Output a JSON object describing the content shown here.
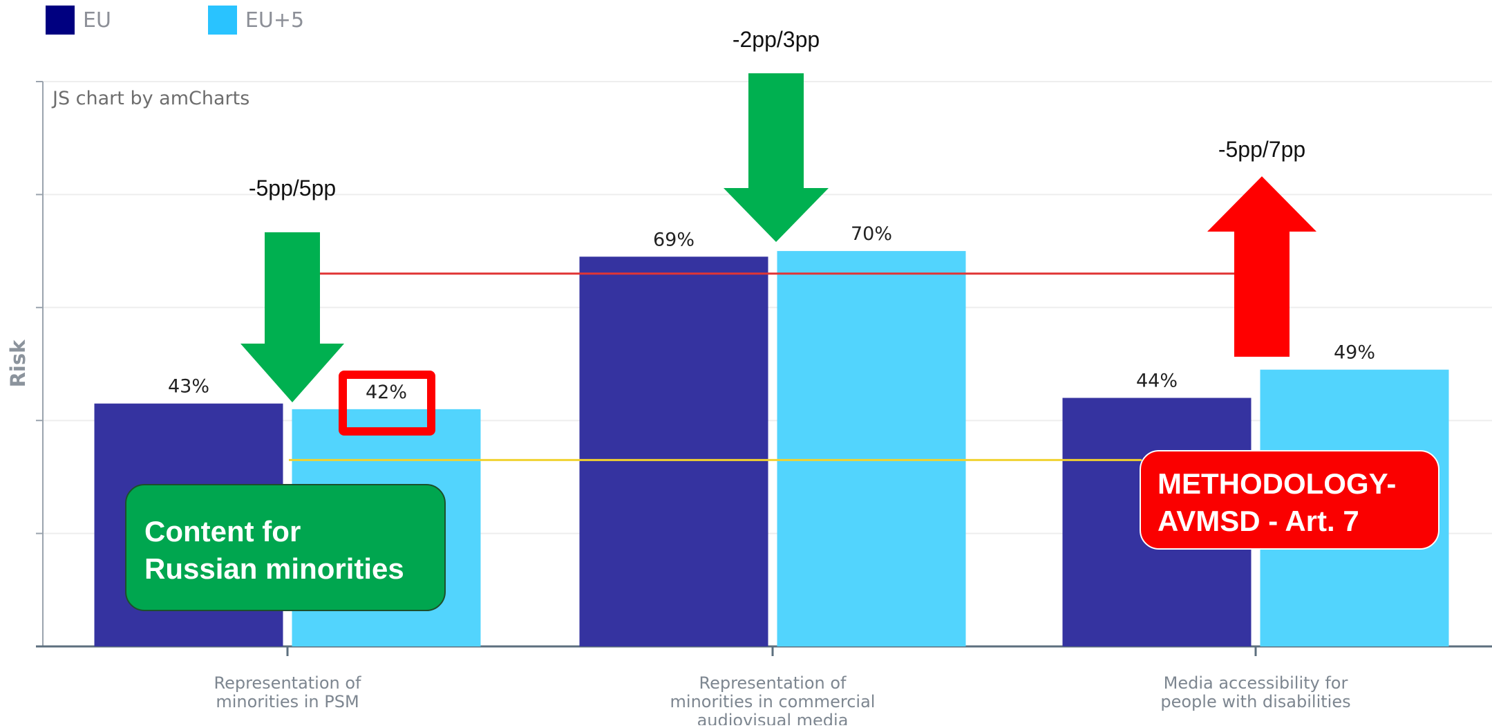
{
  "legend": [
    {
      "name": "EU",
      "color": "#000080"
    },
    {
      "name": "EU+5",
      "color": "#29c3ff"
    }
  ],
  "watermark": "JS chart by amCharts",
  "chart_data": {
    "type": "bar",
    "title": "",
    "xlabel": "",
    "ylabel": "Risk",
    "ylim": [
      0,
      100
    ],
    "grid": true,
    "legend_position": "top-left",
    "categories": [
      [
        "Representation of",
        "minorities in PSM"
      ],
      [
        "Representation of",
        "minorities in commercial",
        "audiovisual media"
      ],
      [
        "Media accessibility for",
        "people with disabilities"
      ]
    ],
    "series": [
      {
        "name": "EU",
        "color": "#3533a0",
        "values": [
          43,
          69,
          44
        ],
        "labels": [
          "43%",
          "69%",
          "44%"
        ]
      },
      {
        "name": "EU+5",
        "color": "#52d4fd",
        "values": [
          42,
          70,
          49
        ],
        "labels": [
          "42%",
          "70%",
          "49%"
        ]
      }
    ],
    "reference_lines": [
      {
        "value": 66,
        "color": "#e03535"
      },
      {
        "value": 33,
        "color": "#f1d230"
      }
    ]
  },
  "annotations": {
    "arrows": [
      {
        "label": "-5pp/5pp",
        "direction": "down",
        "color": "#00b050"
      },
      {
        "label": "-2pp/3pp",
        "direction": "down",
        "color": "#00b050"
      },
      {
        "label": "-5pp/7pp",
        "direction": "up",
        "color": "#ff0000"
      }
    ],
    "green_box": {
      "lines": [
        "Content for",
        "Russian minorities"
      ]
    },
    "red_box": {
      "lines": [
        "METHODOLOGY-",
        "AVMSD  - Art. 7"
      ]
    }
  }
}
